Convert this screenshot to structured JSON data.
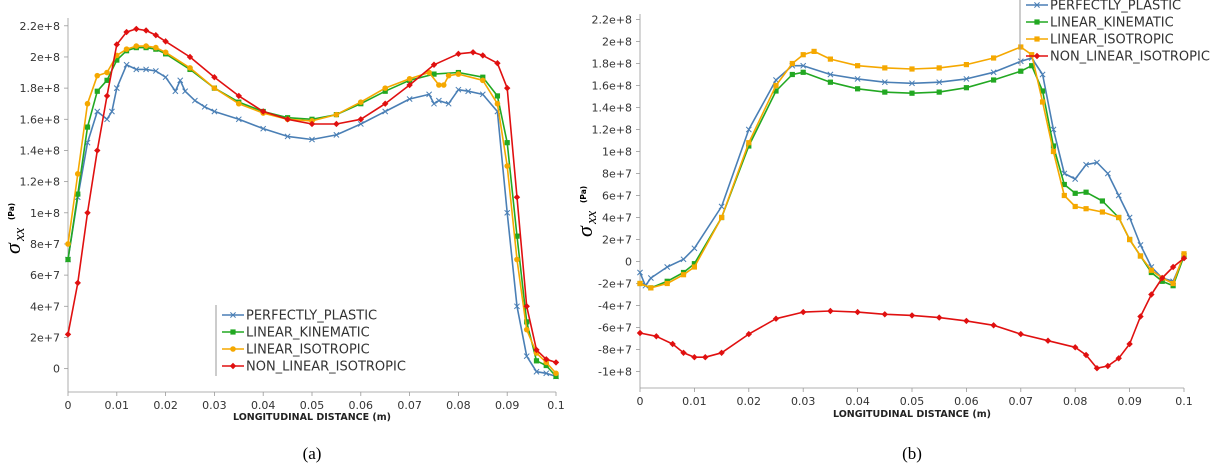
{
  "chart_data": [
    {
      "type": "line",
      "caption": "(a)",
      "xlabel": "LONGITUDINAL DISTANCE (m)",
      "ylabel_symbol": "σ",
      "ylabel_subscript": "xx",
      "ylabel_unit": "(Pa)",
      "xlim": [
        0,
        0.1
      ],
      "ylim": [
        -15000000,
        225000000
      ],
      "x_ticks": [
        0,
        0.01,
        0.02,
        0.03,
        0.04,
        0.05,
        0.06,
        0.07,
        0.08,
        0.09,
        0.1
      ],
      "y_ticks": [
        0,
        20000000,
        40000000,
        60000000,
        80000000,
        100000000,
        120000000,
        140000000,
        160000000,
        180000000,
        200000000,
        220000000
      ],
      "x_tick_labels": [
        "0",
        "0.01",
        "0.02",
        "0.03",
        "0.04",
        "0.05",
        "0.06",
        "0.07",
        "0.08",
        "0.09",
        "0.1"
      ],
      "y_tick_labels": [
        "0",
        "2e+7",
        "4e+7",
        "6e+7",
        "8e+7",
        "1e+8",
        "1.2e+8",
        "1.4e+8",
        "1.6e+8",
        "1.8e+8",
        "2e+8",
        "2.2e+8"
      ],
      "legend_position": "bottom-right",
      "series": [
        {
          "name": "PERFECTLY_PLASTIC",
          "color": "#4a7fb5",
          "marker": "x",
          "x": [
            0,
            0.002,
            0.004,
            0.006,
            0.008,
            0.009,
            0.01,
            0.012,
            0.014,
            0.016,
            0.018,
            0.02,
            0.022,
            0.023,
            0.024,
            0.026,
            0.028,
            0.03,
            0.035,
            0.04,
            0.045,
            0.05,
            0.055,
            0.06,
            0.065,
            0.07,
            0.074,
            0.075,
            0.076,
            0.078,
            0.08,
            0.082,
            0.085,
            0.088,
            0.09,
            0.092,
            0.094,
            0.096,
            0.098,
            0.1
          ],
          "y": [
            70000000,
            110000000,
            145000000,
            165000000,
            160000000,
            165000000,
            180000000,
            195000000,
            192000000,
            192000000,
            191000000,
            187000000,
            178000000,
            185000000,
            178000000,
            172000000,
            168000000,
            165000000,
            160000000,
            154000000,
            149000000,
            147000000,
            150000000,
            157000000,
            165000000,
            173000000,
            176000000,
            170000000,
            172000000,
            170000000,
            179000000,
            178000000,
            176000000,
            165000000,
            100000000,
            40000000,
            8000000,
            -2000000,
            -3000000,
            -5000000
          ]
        },
        {
          "name": "LINEAR_KINEMATIC",
          "color": "#22a822",
          "marker": "square",
          "x": [
            0,
            0.002,
            0.004,
            0.006,
            0.008,
            0.01,
            0.012,
            0.014,
            0.016,
            0.018,
            0.02,
            0.025,
            0.03,
            0.035,
            0.04,
            0.045,
            0.05,
            0.055,
            0.06,
            0.065,
            0.07,
            0.075,
            0.08,
            0.085,
            0.088,
            0.09,
            0.092,
            0.094,
            0.096,
            0.098,
            0.1
          ],
          "y": [
            70000000,
            112000000,
            155000000,
            178000000,
            185000000,
            198000000,
            204000000,
            206000000,
            206000000,
            205000000,
            202000000,
            192000000,
            180000000,
            171000000,
            165000000,
            161000000,
            160000000,
            163000000,
            170000000,
            178000000,
            185000000,
            189000000,
            190000000,
            187000000,
            175000000,
            145000000,
            85000000,
            30000000,
            5000000,
            2000000,
            -5000000
          ]
        },
        {
          "name": "LINEAR_ISOTROPIC",
          "color": "#f5a800",
          "marker": "circle",
          "x": [
            0,
            0.002,
            0.004,
            0.006,
            0.008,
            0.01,
            0.012,
            0.014,
            0.016,
            0.018,
            0.02,
            0.025,
            0.03,
            0.035,
            0.04,
            0.045,
            0.05,
            0.055,
            0.06,
            0.065,
            0.07,
            0.074,
            0.076,
            0.077,
            0.078,
            0.08,
            0.085,
            0.088,
            0.09,
            0.092,
            0.094,
            0.096,
            0.098,
            0.1
          ],
          "y": [
            80000000,
            125000000,
            170000000,
            188000000,
            190000000,
            201000000,
            205000000,
            207000000,
            207000000,
            206000000,
            203000000,
            193000000,
            180000000,
            170000000,
            164000000,
            160000000,
            159000000,
            163000000,
            171000000,
            180000000,
            186000000,
            190000000,
            182000000,
            182000000,
            188000000,
            189000000,
            185000000,
            170000000,
            130000000,
            70000000,
            25000000,
            10000000,
            4000000,
            -3000000
          ]
        },
        {
          "name": "NON_LINEAR_ISOTROPIC",
          "color": "#e01010",
          "marker": "diamond",
          "x": [
            0,
            0.002,
            0.004,
            0.006,
            0.008,
            0.01,
            0.012,
            0.014,
            0.016,
            0.018,
            0.02,
            0.025,
            0.03,
            0.035,
            0.04,
            0.045,
            0.05,
            0.055,
            0.06,
            0.065,
            0.07,
            0.075,
            0.08,
            0.083,
            0.085,
            0.088,
            0.09,
            0.092,
            0.094,
            0.096,
            0.098,
            0.1
          ],
          "y": [
            22000000,
            55000000,
            100000000,
            140000000,
            175000000,
            208000000,
            216000000,
            218000000,
            217000000,
            214000000,
            210000000,
            200000000,
            187000000,
            175000000,
            165000000,
            160000000,
            157000000,
            157000000,
            160000000,
            170000000,
            182000000,
            195000000,
            202000000,
            203000000,
            201000000,
            196000000,
            180000000,
            110000000,
            40000000,
            12000000,
            6000000,
            4000000
          ]
        }
      ]
    },
    {
      "type": "line",
      "caption": "(b)",
      "xlabel": "LONGITUDINAL DISTANCE (m)",
      "ylabel_symbol": "σ",
      "ylabel_subscript": "xx",
      "ylabel_unit": "(Pa)",
      "xlim": [
        0,
        0.1
      ],
      "ylim": [
        -115000000,
        225000000
      ],
      "x_ticks": [
        0,
        0.01,
        0.02,
        0.03,
        0.04,
        0.05,
        0.06,
        0.07,
        0.08,
        0.09,
        0.1
      ],
      "y_ticks": [
        -100000000,
        -80000000,
        -60000000,
        -40000000,
        -20000000,
        0,
        20000000,
        40000000,
        60000000,
        80000000,
        100000000,
        120000000,
        140000000,
        160000000,
        180000000,
        200000000,
        220000000
      ],
      "x_tick_labels": [
        "0",
        "0.01",
        "0.02",
        "0.03",
        "0.04",
        "0.05",
        "0.06",
        "0.07",
        "0.08",
        "0.09",
        "0.1"
      ],
      "y_tick_labels": [
        "-1e+8",
        "-8e+7",
        "-6e+7",
        "-4e+7",
        "-2e+7",
        "0",
        "2e+7",
        "4e+7",
        "6e+7",
        "8e+7",
        "1e+8",
        "1.2e+8",
        "1.4e+8",
        "1.6e+8",
        "1.8e+8",
        "2e+8",
        "2.2e+8"
      ],
      "legend_position": "top-right",
      "series": [
        {
          "name": "PERFECTLY_PLASTIC",
          "color": "#4a7fb5",
          "marker": "x",
          "x": [
            0,
            0.001,
            0.002,
            0.005,
            0.008,
            0.01,
            0.015,
            0.02,
            0.025,
            0.028,
            0.03,
            0.035,
            0.04,
            0.045,
            0.05,
            0.055,
            0.06,
            0.065,
            0.07,
            0.072,
            0.074,
            0.076,
            0.078,
            0.08,
            0.082,
            0.084,
            0.086,
            0.088,
            0.09,
            0.092,
            0.094,
            0.096,
            0.098,
            0.1
          ],
          "y": [
            -10000000,
            -22000000,
            -15000000,
            -5000000,
            2000000,
            12000000,
            50000000,
            120000000,
            165000000,
            178000000,
            178000000,
            170000000,
            166000000,
            163000000,
            162000000,
            163000000,
            166000000,
            172000000,
            182000000,
            185000000,
            170000000,
            120000000,
            80000000,
            75000000,
            88000000,
            90000000,
            80000000,
            60000000,
            40000000,
            15000000,
            -5000000,
            -15000000,
            -18000000,
            5000000
          ]
        },
        {
          "name": "LINEAR_KINEMATIC",
          "color": "#22a822",
          "marker": "square",
          "x": [
            0,
            0.002,
            0.005,
            0.008,
            0.01,
            0.015,
            0.02,
            0.025,
            0.028,
            0.03,
            0.035,
            0.04,
            0.045,
            0.05,
            0.055,
            0.06,
            0.065,
            0.07,
            0.072,
            0.074,
            0.076,
            0.078,
            0.08,
            0.082,
            0.085,
            0.088,
            0.09,
            0.092,
            0.094,
            0.096,
            0.098,
            0.1
          ],
          "y": [
            -20000000,
            -24000000,
            -18000000,
            -10000000,
            -2000000,
            40000000,
            105000000,
            155000000,
            170000000,
            172000000,
            163000000,
            157000000,
            154000000,
            153000000,
            154000000,
            158000000,
            165000000,
            173000000,
            178000000,
            155000000,
            105000000,
            70000000,
            62000000,
            63000000,
            55000000,
            40000000,
            20000000,
            5000000,
            -10000000,
            -18000000,
            -22000000,
            5000000
          ]
        },
        {
          "name": "LINEAR_ISOTROPIC",
          "color": "#f5a800",
          "marker": "square",
          "x": [
            0,
            0.002,
            0.005,
            0.008,
            0.01,
            0.015,
            0.02,
            0.025,
            0.028,
            0.03,
            0.032,
            0.035,
            0.04,
            0.045,
            0.05,
            0.055,
            0.06,
            0.065,
            0.07,
            0.072,
            0.074,
            0.076,
            0.078,
            0.08,
            0.082,
            0.085,
            0.088,
            0.09,
            0.092,
            0.094,
            0.096,
            0.098,
            0.1
          ],
          "y": [
            -20000000,
            -24000000,
            -20000000,
            -12000000,
            -5000000,
            40000000,
            108000000,
            160000000,
            180000000,
            188000000,
            191000000,
            184000000,
            178000000,
            176000000,
            175000000,
            176000000,
            179000000,
            185000000,
            195000000,
            188000000,
            145000000,
            100000000,
            60000000,
            50000000,
            48000000,
            45000000,
            40000000,
            20000000,
            5000000,
            -8000000,
            -15000000,
            -20000000,
            7000000
          ]
        },
        {
          "name": "NON_LINEAR_ISOTROPIC",
          "color": "#e01010",
          "marker": "diamond",
          "x": [
            0,
            0.003,
            0.006,
            0.008,
            0.01,
            0.012,
            0.015,
            0.02,
            0.025,
            0.03,
            0.035,
            0.04,
            0.045,
            0.05,
            0.055,
            0.06,
            0.065,
            0.07,
            0.075,
            0.08,
            0.082,
            0.084,
            0.086,
            0.088,
            0.09,
            0.092,
            0.094,
            0.096,
            0.098,
            0.1
          ],
          "y": [
            -65000000,
            -68000000,
            -75000000,
            -83000000,
            -87000000,
            -87000000,
            -83000000,
            -66000000,
            -52000000,
            -46000000,
            -45000000,
            -46000000,
            -48000000,
            -49000000,
            -51000000,
            -54000000,
            -58000000,
            -66000000,
            -72000000,
            -78000000,
            -85000000,
            -97000000,
            -95000000,
            -88000000,
            -75000000,
            -50000000,
            -30000000,
            -15000000,
            -5000000,
            3000000
          ]
        }
      ]
    }
  ]
}
